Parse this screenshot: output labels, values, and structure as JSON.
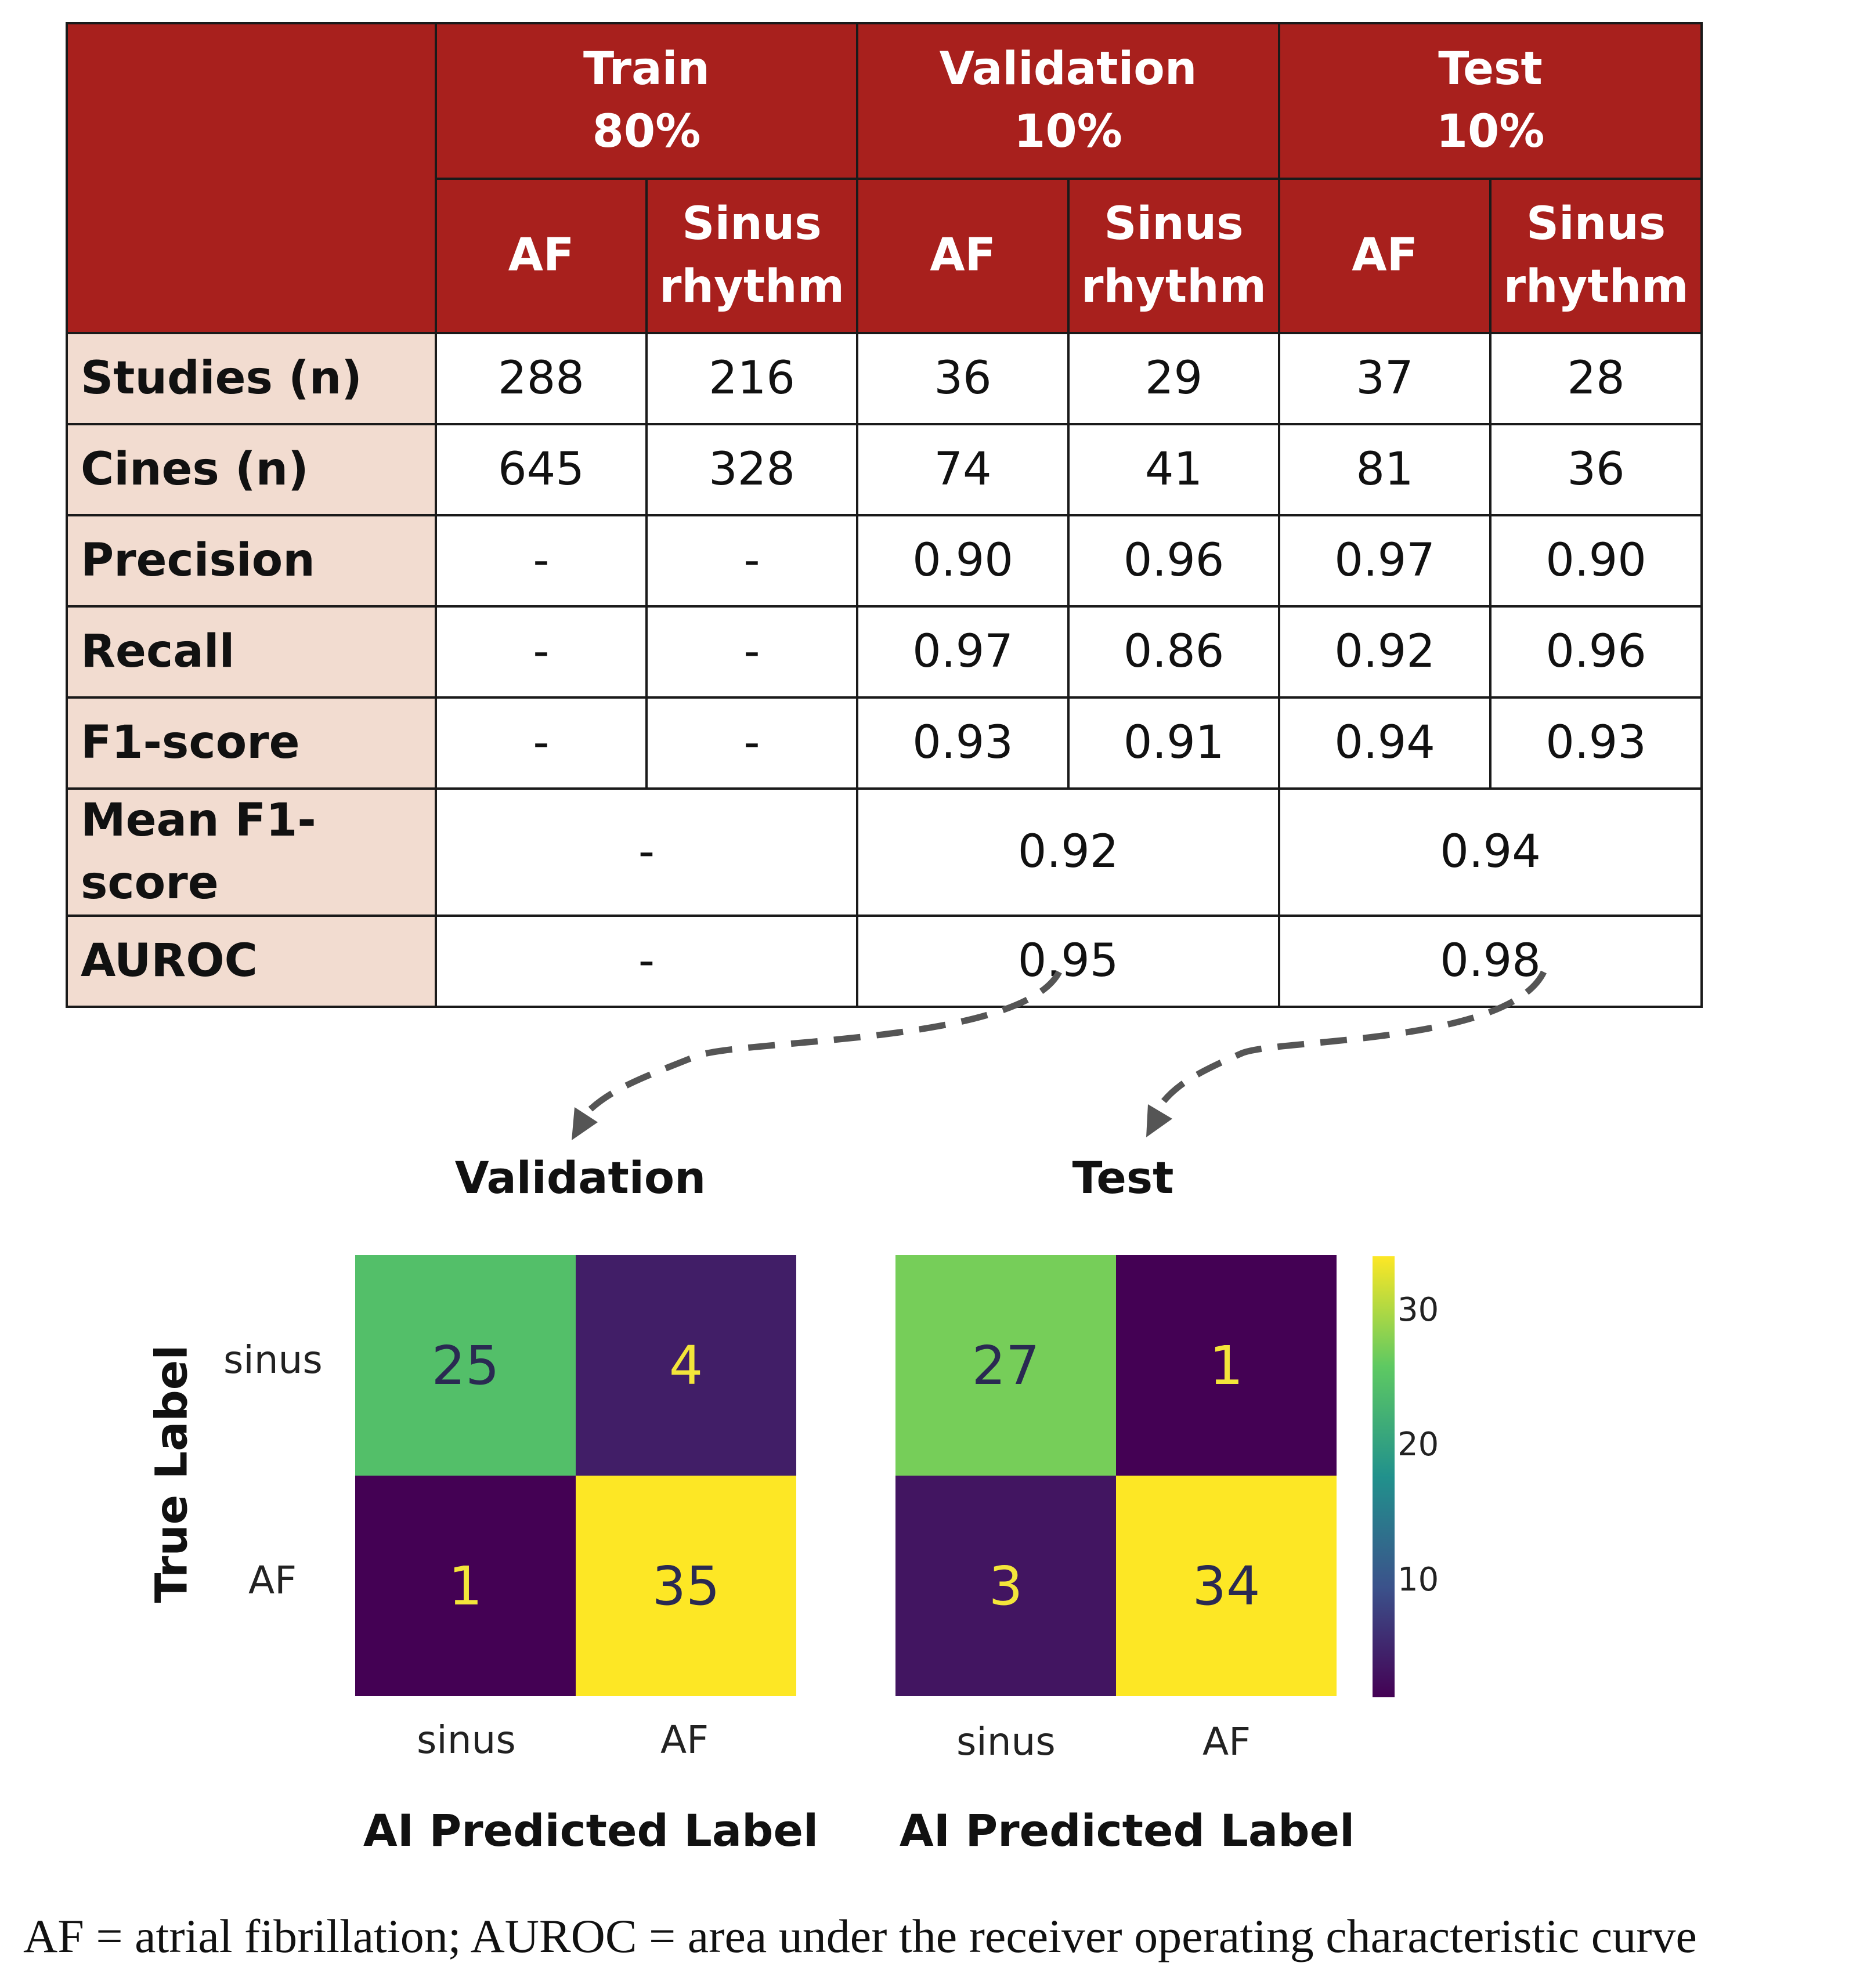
{
  "table": {
    "groups": [
      {
        "name": "Train",
        "pct": "80%"
      },
      {
        "name": "Validation",
        "pct": "10%"
      },
      {
        "name": "Test",
        "pct": "10%"
      }
    ],
    "subheaders": [
      {
        "line1": "AF",
        "line2": ""
      },
      {
        "line1": "Sinus",
        "line2": "rhythm"
      },
      {
        "line1": "AF",
        "line2": ""
      },
      {
        "line1": "Sinus",
        "line2": "rhythm"
      },
      {
        "line1": "AF",
        "line2": ""
      },
      {
        "line1": "Sinus",
        "line2": "rhythm"
      }
    ],
    "rows": [
      {
        "label": "Studies (n)",
        "cells": [
          "288",
          "216",
          "36",
          "29",
          "37",
          "28"
        ]
      },
      {
        "label": "Cines (n)",
        "cells": [
          "645",
          "328",
          "74",
          "41",
          "81",
          "36"
        ]
      },
      {
        "label": "Precision",
        "cells": [
          "-",
          "-",
          "0.90",
          "0.96",
          "0.97",
          "0.90"
        ]
      },
      {
        "label": "Recall",
        "cells": [
          "-",
          "-",
          "0.97",
          "0.86",
          "0.92",
          "0.96"
        ]
      },
      {
        "label": "F1-score",
        "cells": [
          "-",
          "-",
          "0.93",
          "0.91",
          "0.94",
          "0.93"
        ]
      },
      {
        "label": "Mean F1-score",
        "merged": [
          "-",
          "0.92",
          "0.94"
        ]
      },
      {
        "label": "AUROC",
        "merged": [
          "-",
          "0.95",
          "0.98"
        ]
      }
    ]
  },
  "chart_data": [
    {
      "type": "heatmap",
      "title": "Validation",
      "xlabel": "AI Predicted Label",
      "ylabel": "True Label",
      "x_categories": [
        "sinus",
        "AF"
      ],
      "y_categories": [
        "sinus",
        "AF"
      ],
      "values": [
        [
          25,
          4
        ],
        [
          1,
          35
        ]
      ],
      "colormap": "viridis",
      "vmin": 1,
      "vmax": 35
    },
    {
      "type": "heatmap",
      "title": "Test",
      "xlabel": "AI Predicted Label",
      "ylabel": "",
      "x_categories": [
        "sinus",
        "AF"
      ],
      "y_categories": [
        "sinus",
        "AF"
      ],
      "values": [
        [
          27,
          1
        ],
        [
          3,
          34
        ]
      ],
      "colormap": "viridis",
      "vmin": 1,
      "vmax": 34,
      "colorbar_ticks": [
        10,
        20,
        30
      ]
    }
  ],
  "caption": "AF = atrial fibrillation; AUROC = area under the receiver operating characteristic curve",
  "colors": {
    "header_bg": "#a8201d",
    "label_bg": "#f2dcd0",
    "arrow": "#555555",
    "text_light": "#f3e53a",
    "text_dark": "#2a2a52"
  }
}
